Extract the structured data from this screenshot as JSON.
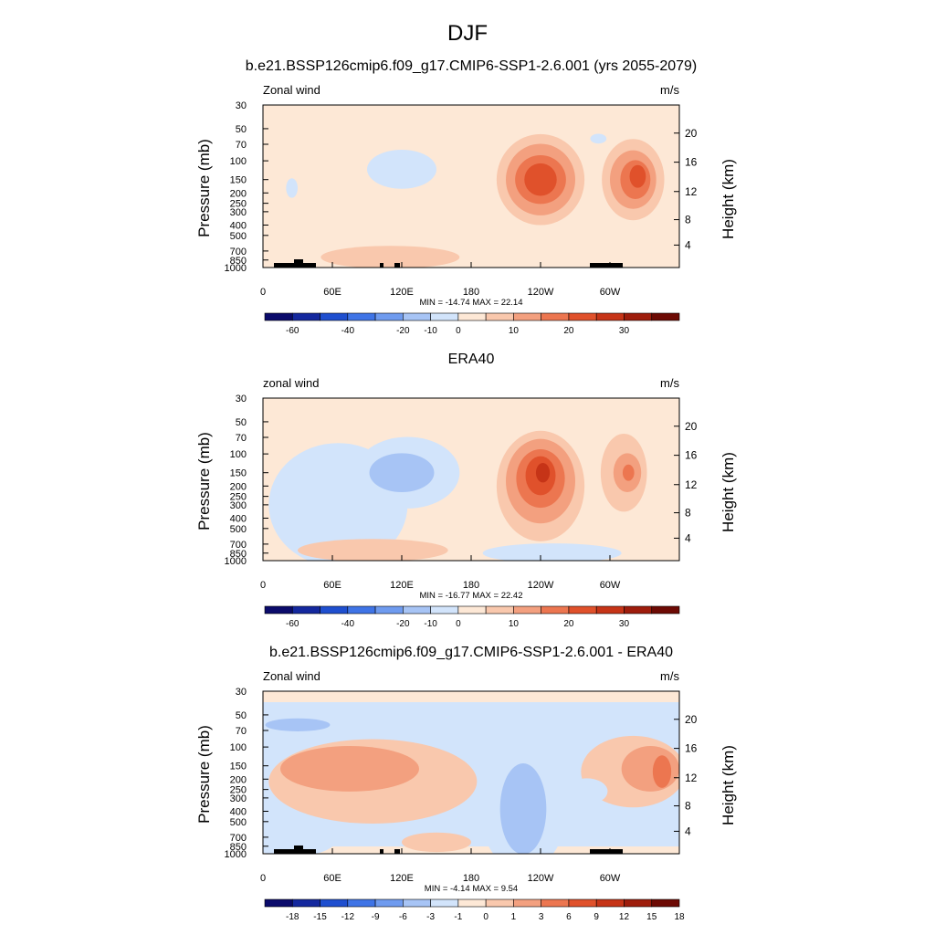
{
  "figure": {
    "title": "DJF"
  },
  "chart_data": [
    {
      "type": "heatmap",
      "title": "b.e21.BSSP126cmip6.f09_g17.CMIP6-SSP1-2.6.001 (yrs 2055-2079)",
      "left_label": "Zonal wind",
      "right_label": "m/s",
      "ylabel": "Pressure (mb)",
      "ylabel_right": "Height (km)",
      "x_ticks": [
        "0",
        "60E",
        "120E",
        "180",
        "120W",
        "60W"
      ],
      "y_ticks": [
        "30",
        "50",
        "70",
        "100",
        "150",
        "200",
        "250",
        "300",
        "400",
        "500",
        "700",
        "850",
        "1000"
      ],
      "height_ticks": [
        "20",
        "16",
        "12",
        "8",
        "4"
      ],
      "stats": "MIN = -14.74  MAX =  22.14",
      "colorbar": {
        "labels": [
          "-60",
          "-40",
          "-20",
          "-10",
          "0",
          "10",
          "20",
          "30"
        ],
        "colors": [
          "#0b0b6b",
          "#14289e",
          "#1f4fcf",
          "#3f74e6",
          "#6f9bef",
          "#a7c4f5",
          "#d2e4fb",
          "#fde8d6",
          "#f9c8ad",
          "#f3a07f",
          "#ec7650",
          "#e0512b",
          "#c63417",
          "#9e1d0c",
          "#6d0a04"
        ]
      },
      "features": [
        {
          "level": -1,
          "lon": 120,
          "p": 120,
          "rlon": 30,
          "rlev": 0.12
        },
        {
          "level": 1,
          "lon": 240,
          "p": 150,
          "rlon": 38,
          "rlev": 0.28
        },
        {
          "level": 2,
          "lon": 240,
          "p": 150,
          "rlon": 30,
          "rlev": 0.22
        },
        {
          "level": 3,
          "lon": 240,
          "p": 150,
          "rlon": 22,
          "rlev": 0.15
        },
        {
          "level": 4,
          "lon": 240,
          "p": 150,
          "rlon": 14,
          "rlev": 0.1
        },
        {
          "level": 1,
          "lon": 320,
          "p": 150,
          "rlon": 27,
          "rlev": 0.25
        },
        {
          "level": 2,
          "lon": 320,
          "p": 150,
          "rlon": 20,
          "rlev": 0.18
        },
        {
          "level": 3,
          "lon": 322,
          "p": 150,
          "rlon": 13,
          "rlev": 0.12
        },
        {
          "level": 4,
          "lon": 324,
          "p": 140,
          "rlon": 7,
          "rlev": 0.07
        },
        {
          "level": 1,
          "lon": 110,
          "p": 800,
          "rlon": 60,
          "rlev": 0.07
        },
        {
          "level": -1,
          "lon": 25,
          "p": 180,
          "rlon": 5,
          "rlev": 0.06
        },
        {
          "level": -1,
          "lon": 290,
          "p": 62,
          "rlon": 7,
          "rlev": 0.03
        }
      ]
    },
    {
      "type": "heatmap",
      "title": "ERA40",
      "left_label": "zonal wind",
      "right_label": "m/s",
      "ylabel": "Pressure (mb)",
      "ylabel_right": "Height (km)",
      "x_ticks": [
        "0",
        "60E",
        "120E",
        "180",
        "120W",
        "60W"
      ],
      "y_ticks": [
        "30",
        "50",
        "70",
        "100",
        "150",
        "200",
        "250",
        "300",
        "400",
        "500",
        "700",
        "850",
        "1000"
      ],
      "height_ticks": [
        "20",
        "16",
        "12",
        "8",
        "4"
      ],
      "stats": "MIN = -16.77  MAX =  22.42",
      "colorbar": {
        "labels": [
          "-60",
          "-40",
          "-20",
          "-10",
          "0",
          "10",
          "20",
          "30"
        ],
        "colors": [
          "#0b0b6b",
          "#14289e",
          "#1f4fcf",
          "#3f74e6",
          "#6f9bef",
          "#a7c4f5",
          "#d2e4fb",
          "#fde8d6",
          "#f9c8ad",
          "#f3a07f",
          "#ec7650",
          "#e0512b",
          "#c63417",
          "#9e1d0c",
          "#6d0a04"
        ]
      },
      "features": [
        {
          "level": -1,
          "lon": 65,
          "p": 300,
          "rlon": 60,
          "rlev": 0.38
        },
        {
          "level": -1,
          "lon": 125,
          "p": 150,
          "rlon": 45,
          "rlev": 0.22
        },
        {
          "level": -2,
          "lon": 120,
          "p": 150,
          "rlon": 28,
          "rlev": 0.12
        },
        {
          "level": 1,
          "lon": 240,
          "p": 200,
          "rlon": 38,
          "rlev": 0.34
        },
        {
          "level": 2,
          "lon": 240,
          "p": 180,
          "rlon": 30,
          "rlev": 0.26
        },
        {
          "level": 3,
          "lon": 240,
          "p": 170,
          "rlon": 21,
          "rlev": 0.18
        },
        {
          "level": 4,
          "lon": 240,
          "p": 160,
          "rlon": 13,
          "rlev": 0.12
        },
        {
          "level": 5,
          "lon": 242,
          "p": 150,
          "rlon": 6,
          "rlev": 0.06
        },
        {
          "level": 1,
          "lon": 312,
          "p": 150,
          "rlon": 20,
          "rlev": 0.24
        },
        {
          "level": 2,
          "lon": 315,
          "p": 150,
          "rlon": 12,
          "rlev": 0.12
        },
        {
          "level": 3,
          "lon": 316,
          "p": 150,
          "rlon": 5,
          "rlev": 0.05
        },
        {
          "level": 1,
          "lon": 95,
          "p": 800,
          "rlon": 65,
          "rlev": 0.07
        },
        {
          "level": -1,
          "lon": 250,
          "p": 850,
          "rlon": 60,
          "rlev": 0.06
        }
      ]
    },
    {
      "type": "heatmap",
      "title": "b.e21.BSSP126cmip6.f09_g17.CMIP6-SSP1-2.6.001 - ERA40",
      "left_label": "Zonal wind",
      "right_label": "m/s",
      "ylabel": "Pressure (mb)",
      "ylabel_right": "Height (km)",
      "x_ticks": [
        "0",
        "60E",
        "120E",
        "180",
        "120W",
        "60W"
      ],
      "y_ticks": [
        "30",
        "50",
        "70",
        "100",
        "150",
        "200",
        "250",
        "300",
        "400",
        "500",
        "700",
        "850",
        "1000"
      ],
      "height_ticks": [
        "20",
        "16",
        "12",
        "8",
        "4"
      ],
      "stats": "MIN =  -4.14  MAX =   9.54",
      "colorbar": {
        "labels": [
          "-18",
          "-15",
          "-12",
          "-9",
          "-6",
          "-3",
          "-1",
          "0",
          "1",
          "3",
          "6",
          "9",
          "12",
          "15",
          "18"
        ],
        "colors": [
          "#0b0b6b",
          "#14289e",
          "#1f4fcf",
          "#3f74e6",
          "#6f9bef",
          "#a7c4f5",
          "#d2e4fb",
          "#fde8d6",
          "#f9c8ad",
          "#f3a07f",
          "#ec7650",
          "#e0512b",
          "#c63417",
          "#9e1d0c",
          "#6d0a04"
        ]
      },
      "features": [
        {
          "level": -1,
          "lon": 180,
          "p": 58,
          "rlon": 180,
          "rlev": 0.1
        },
        {
          "level": -2,
          "lon": 30,
          "p": 62,
          "rlon": 28,
          "rlev": 0.04
        },
        {
          "level": 1,
          "lon": 95,
          "p": 210,
          "rlon": 90,
          "rlev": 0.26
        },
        {
          "level": 2,
          "lon": 75,
          "p": 160,
          "rlon": 60,
          "rlev": 0.14
        },
        {
          "level": 1,
          "lon": 320,
          "p": 170,
          "rlon": 45,
          "rlev": 0.22
        },
        {
          "level": 2,
          "lon": 335,
          "p": 160,
          "rlon": 25,
          "rlev": 0.14
        },
        {
          "level": 3,
          "lon": 345,
          "p": 170,
          "rlon": 8,
          "rlev": 0.1
        },
        {
          "level": -1,
          "lon": 225,
          "p": 300,
          "rlon": 40,
          "rlev": 0.45
        },
        {
          "level": -2,
          "lon": 225,
          "p": 380,
          "rlon": 20,
          "rlev": 0.28
        },
        {
          "level": -1,
          "lon": 25,
          "p": 700,
          "rlon": 40,
          "rlev": 0.12
        },
        {
          "level": 1,
          "lon": 150,
          "p": 780,
          "rlon": 30,
          "rlev": 0.06
        },
        {
          "level": -1,
          "lon": 280,
          "p": 260,
          "rlon": 18,
          "rlev": 0.08
        }
      ]
    }
  ]
}
